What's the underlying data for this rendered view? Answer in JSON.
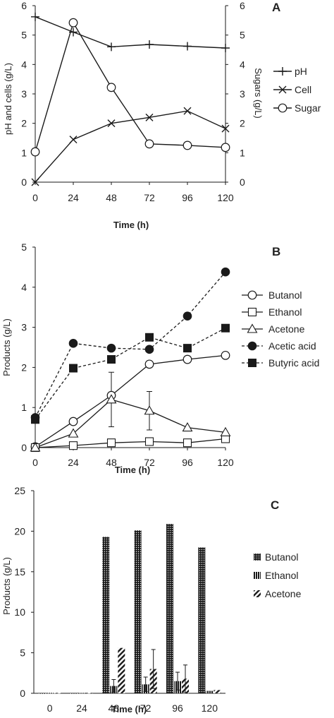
{
  "chart_data": [
    {
      "panel": "A",
      "type": "line",
      "xlabel": "Time (h)",
      "ylabel": "pH and cells (g/L)",
      "y2label": "Sugars (g/L)",
      "x_ticks": [
        0,
        24,
        48,
        72,
        96,
        120
      ],
      "xlim": [
        0,
        120
      ],
      "ylim": [
        0,
        6
      ],
      "y2lim": [
        0,
        6
      ],
      "y_ticks": [
        0,
        1,
        2,
        3,
        4,
        5,
        6
      ],
      "y2_ticks": [
        0,
        1,
        2,
        3,
        4,
        5,
        6
      ],
      "legend_position": "right",
      "series": [
        {
          "name": "pH",
          "marker": "plus",
          "x": [
            0,
            24,
            48,
            72,
            96,
            120
          ],
          "values": [
            5.62,
            5.1,
            4.6,
            4.68,
            4.62,
            4.56
          ]
        },
        {
          "name": "Cell",
          "marker": "cross",
          "x": [
            0,
            24,
            48,
            72,
            96,
            120
          ],
          "values": [
            0.0,
            1.45,
            2.0,
            2.2,
            2.42,
            1.82
          ]
        },
        {
          "name": "Sugar",
          "marker": "circle-open",
          "axis": "right",
          "x": [
            0,
            24,
            48,
            72,
            96,
            120
          ],
          "values": [
            1.03,
            5.42,
            3.22,
            1.3,
            1.25,
            1.18
          ]
        }
      ]
    },
    {
      "panel": "B",
      "type": "line",
      "xlabel": "Time (h)",
      "ylabel": "Products (g/L)",
      "x_ticks": [
        0,
        24,
        48,
        72,
        96,
        120
      ],
      "xlim": [
        0,
        120
      ],
      "ylim": [
        0,
        5
      ],
      "y_ticks": [
        0,
        1,
        2,
        3,
        4,
        5
      ],
      "legend_position": "right",
      "series": [
        {
          "name": "Butanol",
          "marker": "circle-open",
          "style": "solid",
          "x": [
            0,
            24,
            48,
            72,
            96,
            120
          ],
          "values": [
            0.02,
            0.65,
            1.3,
            2.08,
            2.2,
            2.3
          ]
        },
        {
          "name": "Ethanol",
          "marker": "square-open",
          "style": "solid",
          "x": [
            0,
            24,
            48,
            72,
            96,
            120
          ],
          "values": [
            0.0,
            0.05,
            0.12,
            0.15,
            0.12,
            0.22
          ]
        },
        {
          "name": "Acetone",
          "marker": "triangle-open",
          "style": "solid",
          "x": [
            0,
            24,
            48,
            72,
            96,
            120
          ],
          "values": [
            0.0,
            0.35,
            1.2,
            0.92,
            0.5,
            0.38
          ],
          "error": [
            0,
            0,
            0.68,
            0.48,
            0,
            0
          ]
        },
        {
          "name": "Acetic acid",
          "marker": "circle-filled",
          "style": "dashed",
          "x": [
            0,
            24,
            48,
            72,
            96,
            120
          ],
          "values": [
            0.75,
            2.6,
            2.48,
            2.45,
            3.28,
            4.38
          ]
        },
        {
          "name": "Butyric acid",
          "marker": "square-filled",
          "style": "dashed",
          "x": [
            0,
            24,
            48,
            72,
            96,
            120
          ],
          "values": [
            0.7,
            1.98,
            2.2,
            2.75,
            2.48,
            2.98
          ]
        }
      ]
    },
    {
      "panel": "C",
      "type": "bar",
      "xlabel": "Time (h)",
      "ylabel": "Products (g/L)",
      "categories": [
        "0",
        "24",
        "48",
        "72",
        "96",
        "120"
      ],
      "ylim": [
        0,
        25
      ],
      "y_ticks": [
        0,
        5,
        10,
        15,
        20,
        25
      ],
      "legend_position": "right",
      "series": [
        {
          "name": "Butanol",
          "pattern": "dots",
          "values": [
            0.0,
            0.0,
            19.3,
            20.1,
            20.9,
            18.0
          ],
          "error": [
            0,
            0,
            0,
            0,
            0,
            0
          ]
        },
        {
          "name": "Ethanol",
          "pattern": "vertical-lines",
          "values": [
            0.05,
            0.05,
            0.9,
            1.1,
            1.5,
            0.3
          ],
          "error": [
            0,
            0,
            0.8,
            0.9,
            1.1,
            0
          ]
        },
        {
          "name": "Acetone",
          "pattern": "diagonal",
          "values": [
            0.05,
            0.05,
            5.6,
            3.0,
            1.8,
            0.4
          ],
          "error": [
            0,
            0,
            0,
            2.4,
            1.7,
            0
          ]
        }
      ]
    }
  ]
}
